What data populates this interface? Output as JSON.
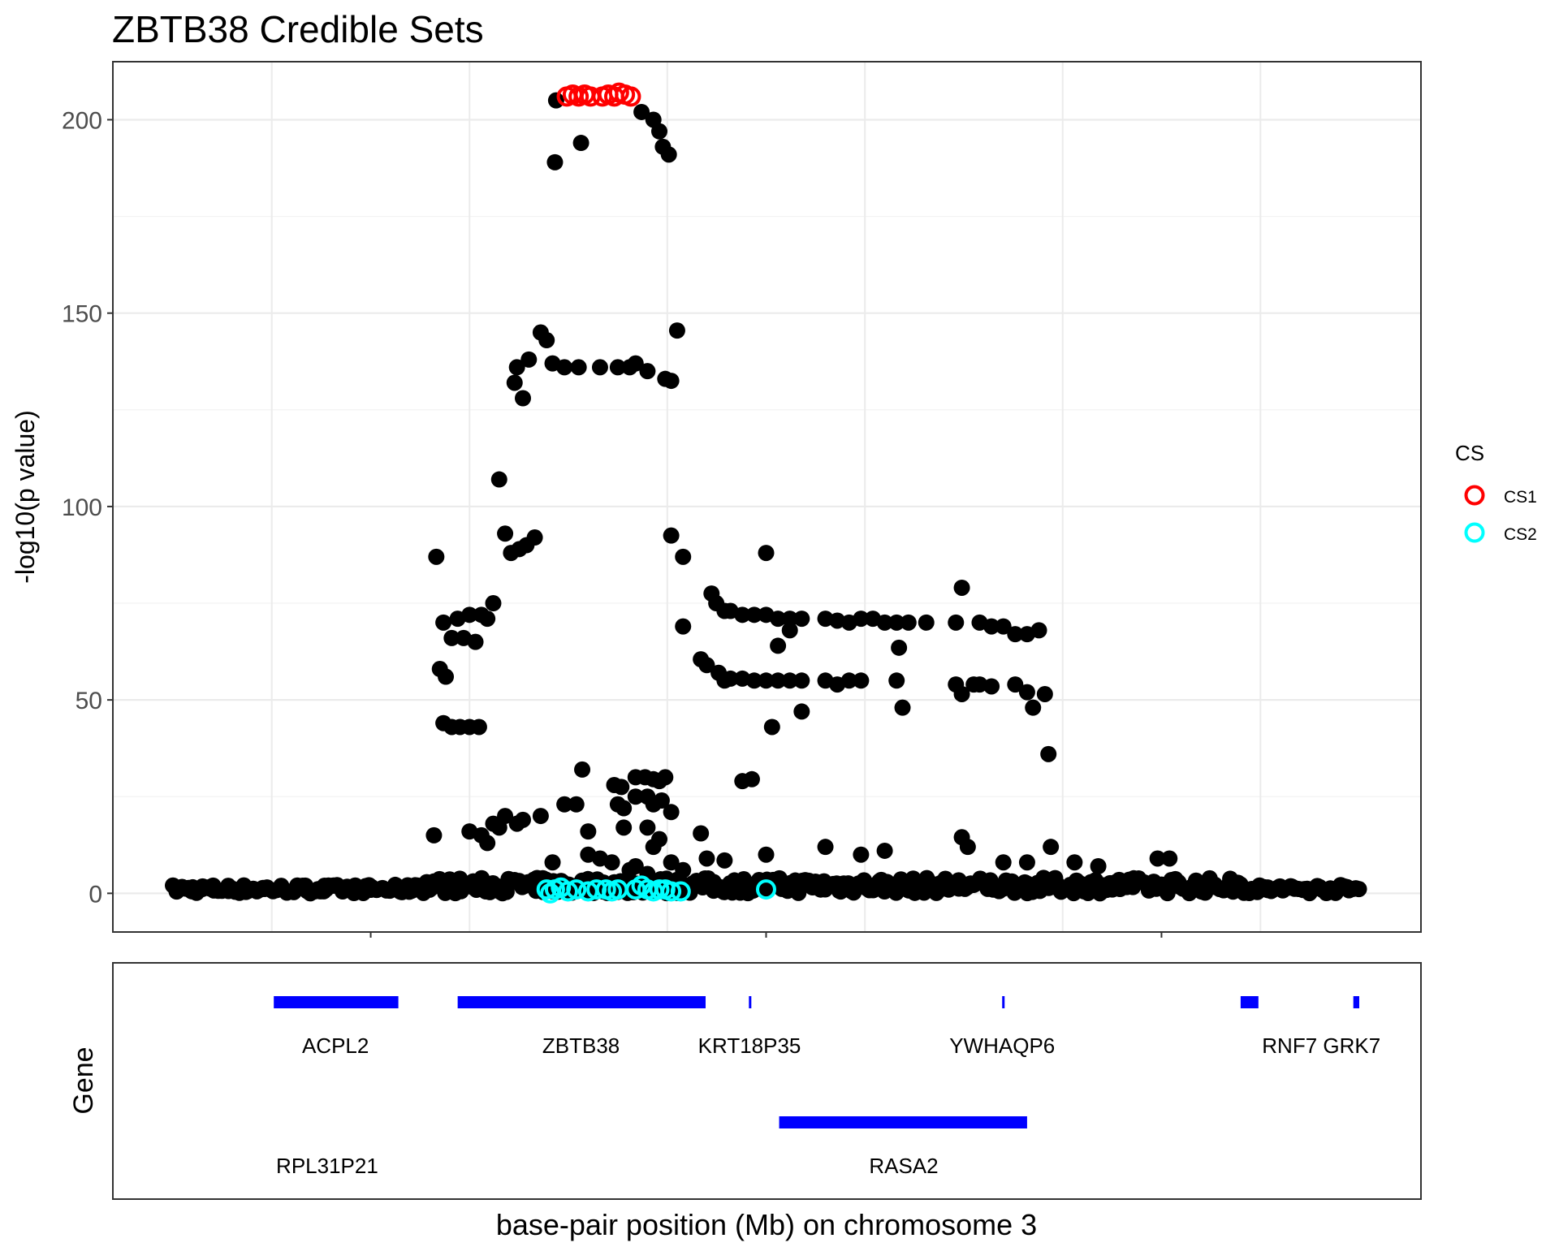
{
  "chart_data": {
    "type": "scatter",
    "title": "ZBTB38 Credible Sets",
    "ylabel": "-log10(p value)",
    "xlabel": "base-pair position (Mb) on chromosome 3",
    "xlim": [
      0,
      1
    ],
    "ylim": [
      -10,
      215
    ],
    "yticks": [
      0,
      50,
      100,
      150,
      200
    ],
    "xgrid": [
      0.0833,
      0.25,
      0.4167,
      0.5833,
      0.75,
      0.9167
    ],
    "xticks_major": [
      0.1667,
      0.5,
      0.8333
    ],
    "colors": {
      "CS1": "#ff0000",
      "CS2": "#00ffff",
      "point": "#000000",
      "gene": "#0000ff"
    },
    "legend": {
      "title": "CS",
      "entries": [
        "CS1",
        "CS2"
      ],
      "position": "right"
    },
    "cs1": [
      [
        0.332,
        206
      ],
      [
        0.337,
        206.5
      ],
      [
        0.342,
        206
      ],
      [
        0.347,
        206.5
      ],
      [
        0.352,
        206
      ],
      [
        0.362,
        206
      ],
      [
        0.367,
        206.5
      ],
      [
        0.372,
        206
      ],
      [
        0.376,
        207
      ],
      [
        0.381,
        206.5
      ],
      [
        0.386,
        206
      ]
    ],
    "cs2": [
      [
        0.315,
        1
      ],
      [
        0.318,
        0
      ],
      [
        0.322,
        1
      ],
      [
        0.327,
        1.5
      ],
      [
        0.333,
        0.5
      ],
      [
        0.34,
        1
      ],
      [
        0.35,
        0.5
      ],
      [
        0.357,
        1
      ],
      [
        0.365,
        1
      ],
      [
        0.37,
        0.5
      ],
      [
        0.375,
        1
      ],
      [
        0.39,
        1
      ],
      [
        0.395,
        2
      ],
      [
        0.4,
        1
      ],
      [
        0.405,
        0.5
      ],
      [
        0.41,
        1
      ],
      [
        0.415,
        1
      ],
      [
        0.42,
        0.5
      ],
      [
        0.428,
        0.5
      ],
      [
        0.5,
        1
      ]
    ],
    "baseline_cs2_range": [
      0.305,
      0.435
    ],
    "peak": [
      [
        0.323,
        205
      ],
      [
        0.322,
        189
      ],
      [
        0.344,
        194
      ],
      [
        0.41,
        197
      ],
      [
        0.413,
        193
      ],
      [
        0.418,
        191
      ],
      [
        0.405,
        200
      ],
      [
        0.395,
        202
      ],
      [
        0.31,
        145
      ],
      [
        0.315,
        143
      ],
      [
        0.32,
        137
      ],
      [
        0.33,
        136
      ],
      [
        0.342,
        136
      ],
      [
        0.36,
        136
      ],
      [
        0.375,
        136
      ],
      [
        0.385,
        136
      ],
      [
        0.39,
        137
      ],
      [
        0.4,
        135
      ],
      [
        0.415,
        133
      ],
      [
        0.42,
        132.5
      ],
      [
        0.425,
        145.5
      ],
      [
        0.29,
        136
      ],
      [
        0.295,
        128
      ],
      [
        0.3,
        138
      ],
      [
        0.288,
        132
      ],
      [
        0.275,
        107
      ],
      [
        0.28,
        93
      ],
      [
        0.285,
        88
      ],
      [
        0.292,
        89
      ],
      [
        0.298,
        90
      ],
      [
        0.305,
        92
      ],
      [
        0.222,
        87
      ],
      [
        0.228,
        70
      ],
      [
        0.235,
        66
      ],
      [
        0.24,
        71
      ],
      [
        0.245,
        66
      ],
      [
        0.25,
        72
      ],
      [
        0.255,
        65
      ],
      [
        0.26,
        72
      ],
      [
        0.265,
        71
      ],
      [
        0.27,
        75
      ],
      [
        0.225,
        58
      ],
      [
        0.23,
        56
      ],
      [
        0.228,
        44
      ],
      [
        0.235,
        43
      ],
      [
        0.242,
        43
      ],
      [
        0.25,
        43
      ],
      [
        0.258,
        43
      ],
      [
        0.42,
        92.5
      ],
      [
        0.43,
        87
      ],
      [
        0.43,
        69
      ],
      [
        0.454,
        77.5
      ],
      [
        0.458,
        75
      ],
      [
        0.465,
        73
      ],
      [
        0.47,
        73
      ],
      [
        0.48,
        72
      ],
      [
        0.49,
        72
      ],
      [
        0.5,
        72
      ],
      [
        0.51,
        71
      ],
      [
        0.52,
        71
      ],
      [
        0.53,
        71
      ],
      [
        0.55,
        71
      ],
      [
        0.56,
        70.5
      ],
      [
        0.57,
        70
      ],
      [
        0.58,
        71
      ],
      [
        0.59,
        71
      ],
      [
        0.6,
        70
      ],
      [
        0.61,
        70
      ],
      [
        0.62,
        70
      ],
      [
        0.635,
        70
      ],
      [
        0.66,
        70
      ],
      [
        0.68,
        70
      ],
      [
        0.69,
        69
      ],
      [
        0.7,
        69
      ],
      [
        0.71,
        67
      ],
      [
        0.72,
        67
      ],
      [
        0.73,
        68
      ],
      [
        0.5,
        88
      ],
      [
        0.51,
        64
      ],
      [
        0.52,
        68
      ],
      [
        0.445,
        60.5
      ],
      [
        0.45,
        59
      ],
      [
        0.46,
        57
      ],
      [
        0.465,
        55
      ],
      [
        0.47,
        55.5
      ],
      [
        0.48,
        55.5
      ],
      [
        0.49,
        55
      ],
      [
        0.5,
        55
      ],
      [
        0.51,
        55
      ],
      [
        0.52,
        55
      ],
      [
        0.53,
        55
      ],
      [
        0.55,
        55
      ],
      [
        0.56,
        54
      ],
      [
        0.57,
        55
      ],
      [
        0.58,
        55
      ],
      [
        0.61,
        55
      ],
      [
        0.615,
        48
      ],
      [
        0.612,
        63.5
      ],
      [
        0.66,
        54
      ],
      [
        0.665,
        51.5
      ],
      [
        0.675,
        54
      ],
      [
        0.68,
        54
      ],
      [
        0.69,
        53.5
      ],
      [
        0.71,
        54
      ],
      [
        0.72,
        52
      ],
      [
        0.725,
        48
      ],
      [
        0.735,
        51.5
      ],
      [
        0.738,
        36
      ],
      [
        0.488,
        29.5
      ],
      [
        0.505,
        43
      ],
      [
        0.53,
        47
      ],
      [
        0.665,
        79
      ],
      [
        0.345,
        32
      ],
      [
        0.33,
        23
      ],
      [
        0.34,
        23
      ],
      [
        0.35,
        16
      ],
      [
        0.372,
        28
      ],
      [
        0.378,
        27.5
      ],
      [
        0.38,
        17
      ],
      [
        0.39,
        30
      ],
      [
        0.398,
        30
      ],
      [
        0.405,
        29.5
      ],
      [
        0.41,
        29
      ],
      [
        0.415,
        30
      ],
      [
        0.39,
        25
      ],
      [
        0.4,
        25
      ],
      [
        0.405,
        23
      ],
      [
        0.412,
        24
      ],
      [
        0.4,
        17
      ],
      [
        0.41,
        14
      ],
      [
        0.42,
        21
      ],
      [
        0.375,
        23
      ],
      [
        0.38,
        22
      ],
      [
        0.31,
        20
      ],
      [
        0.29,
        18
      ],
      [
        0.295,
        19
      ],
      [
        0.25,
        16
      ],
      [
        0.22,
        15
      ],
      [
        0.26,
        15
      ],
      [
        0.265,
        13
      ],
      [
        0.27,
        18
      ],
      [
        0.275,
        17
      ],
      [
        0.28,
        20
      ],
      [
        0.445,
        15.5
      ],
      [
        0.45,
        9
      ],
      [
        0.465,
        8.5
      ],
      [
        0.48,
        29
      ],
      [
        0.55,
        12
      ],
      [
        0.58,
        10
      ],
      [
        0.6,
        11
      ],
      [
        0.665,
        14.5
      ],
      [
        0.67,
        12
      ],
      [
        0.7,
        8
      ],
      [
        0.72,
        8
      ],
      [
        0.74,
        12
      ],
      [
        0.76,
        8
      ],
      [
        0.78,
        7
      ],
      [
        0.83,
        9
      ],
      [
        0.84,
        9
      ],
      [
        0.5,
        10
      ],
      [
        0.35,
        10
      ],
      [
        0.36,
        9
      ],
      [
        0.37,
        8
      ],
      [
        0.32,
        8
      ],
      [
        0.385,
        6
      ],
      [
        0.39,
        7
      ],
      [
        0.4,
        5
      ],
      [
        0.405,
        12
      ],
      [
        0.42,
        8
      ],
      [
        0.43,
        6
      ]
    ],
    "baseline": {
      "count": 450,
      "x_range": [
        0.0,
        1.0
      ],
      "seed": 7
    },
    "genes": [
      {
        "name": "ACPL2",
        "start": 0.085,
        "end": 0.19,
        "row": 1
      },
      {
        "name": "ZBTB38",
        "start": 0.24,
        "end": 0.449,
        "row": 1
      },
      {
        "name": "KRT18P35",
        "start": 0.4855,
        "end": 0.4875,
        "row": 1
      },
      {
        "name": "YWHAQP6",
        "start": 0.699,
        "end": 0.7,
        "row": 1
      },
      {
        "name": "RNF7",
        "start": 0.9,
        "end": 0.915,
        "row": 1
      },
      {
        "name": "GRK7",
        "start": 0.995,
        "end": 1.0,
        "row": 1
      },
      {
        "name": "RASA2",
        "start": 0.511,
        "end": 0.72,
        "row": 2
      }
    ],
    "gene_labels_row1": [
      {
        "text": "ACPL2",
        "x": 0.137
      },
      {
        "text": "ZBTB38",
        "x": 0.344
      },
      {
        "text": "KRT18P35",
        "x": 0.486
      },
      {
        "text": "YWHAQP6",
        "x": 0.699
      },
      {
        "text": "RNF7 GRK7",
        "x": 0.968
      }
    ],
    "gene_labels_row2": [
      {
        "text": "RPL31P21",
        "x": 0.13
      },
      {
        "text": "RASA2",
        "x": 0.616
      }
    ],
    "gene_panel_ylabel": "Gene"
  }
}
